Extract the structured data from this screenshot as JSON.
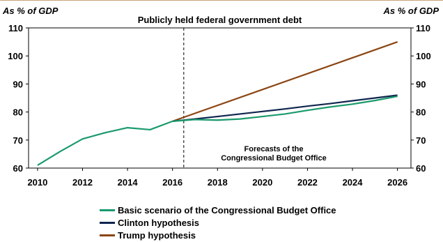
{
  "chart_data": {
    "type": "line",
    "title": "Publicly held federal government debt",
    "ylabel_left": "As % of GDP",
    "ylabel_right": "As % of GDP",
    "x_ticks": [
      "2010",
      "2012",
      "2014",
      "2016",
      "2018",
      "2020",
      "2022",
      "2024",
      "2026"
    ],
    "y_ticks": [
      "60",
      "70",
      "80",
      "90",
      "100",
      "110"
    ],
    "xlim": [
      2009.6,
      2026.6
    ],
    "ylim": [
      60,
      110
    ],
    "forecast_start": 2016.5,
    "annotation": [
      "Forecasts of the",
      "Congressional Budget Office"
    ],
    "series": [
      {
        "name": "Basic scenario of the Congressional Budget Office",
        "color": "#1a9a6c",
        "x": [
          2010,
          2011,
          2012,
          2013,
          2014,
          2015,
          2016,
          2017,
          2018,
          2019,
          2020,
          2021,
          2022,
          2023,
          2024,
          2025,
          2026
        ],
        "values": [
          61.0,
          65.9,
          70.4,
          72.6,
          74.4,
          73.7,
          76.7,
          77.3,
          77.1,
          77.5,
          78.4,
          79.3,
          80.6,
          81.8,
          82.8,
          84.1,
          85.6
        ]
      },
      {
        "name": "Clinton hypothesis",
        "color": "#10264f",
        "x": [
          2016,
          2017,
          2018,
          2019,
          2020,
          2021,
          2022,
          2023,
          2024,
          2025,
          2026
        ],
        "values": [
          76.7,
          77.5,
          78.4,
          79.3,
          80.2,
          81.1,
          82.1,
          83.0,
          84.0,
          85.0,
          86.0
        ]
      },
      {
        "name": "Trump hypothesis",
        "color": "#8b4513",
        "x": [
          2016,
          2026
        ],
        "values": [
          76.7,
          105.0
        ]
      }
    ]
  }
}
